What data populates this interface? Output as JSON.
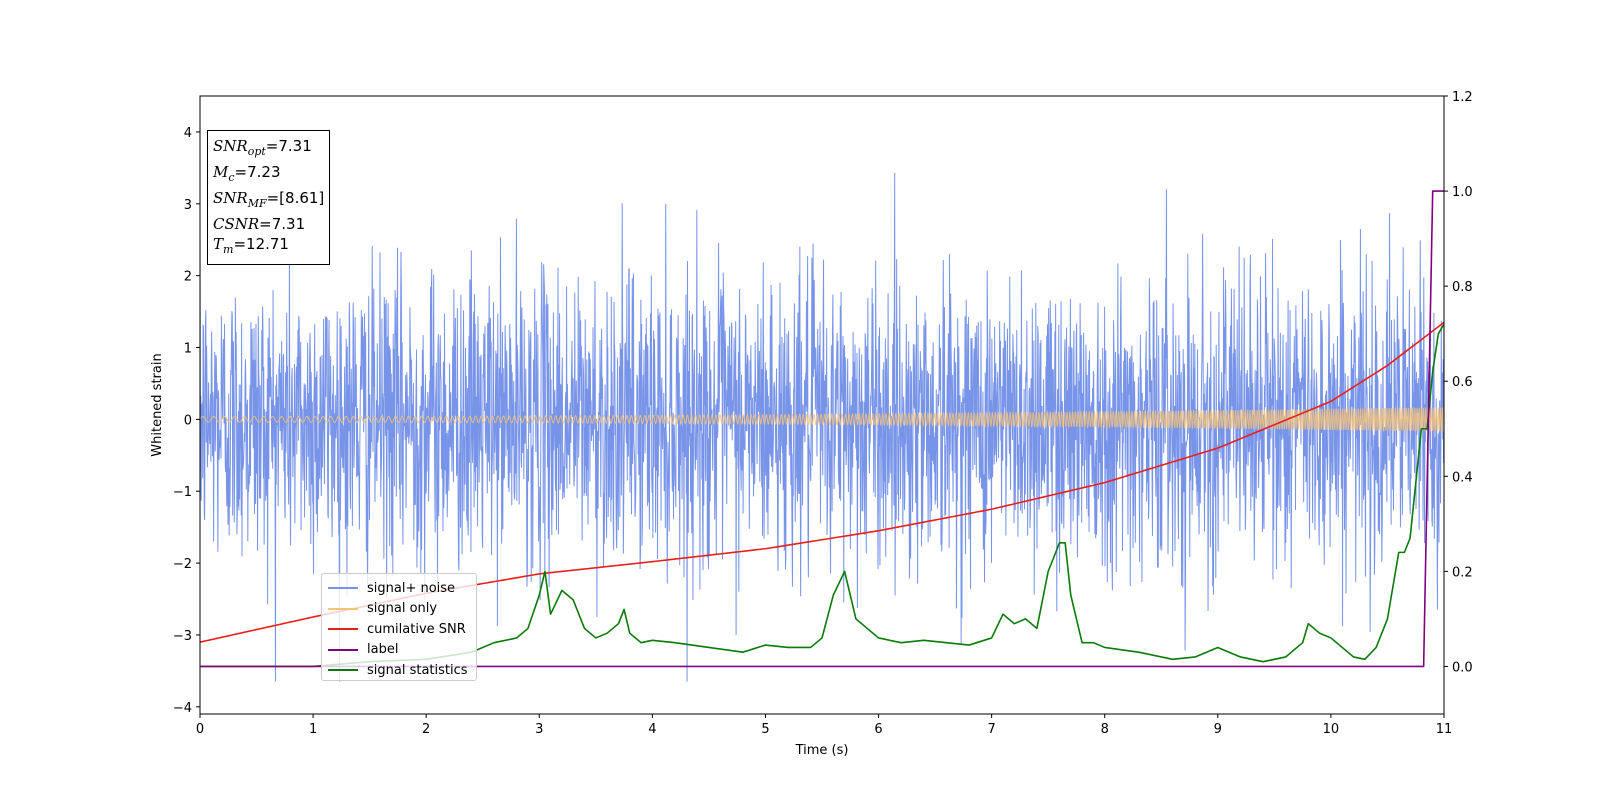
{
  "chart_data": {
    "type": "line",
    "title": "",
    "xlabel": "Time (s)",
    "ylabel": "Whitened strain",
    "y2label": "",
    "xlim": [
      0,
      11
    ],
    "ylim": [
      -4.1,
      4.5
    ],
    "y2lim": [
      -0.1,
      1.2
    ],
    "xticks": [
      "0",
      "1",
      "2",
      "3",
      "4",
      "5",
      "6",
      "7",
      "8",
      "9",
      "10",
      "11"
    ],
    "yticks": [
      "−4",
      "−3",
      "−2",
      "−1",
      "0",
      "1",
      "2",
      "3",
      "4"
    ],
    "y2ticks": [
      "0.0",
      "0.2",
      "0.4",
      "0.6",
      "0.8",
      "1.0",
      "1.2"
    ],
    "legend_position": "lower-left",
    "annotation": {
      "snr_opt_label": "SNR",
      "snr_opt_sub": "opt",
      "snr_opt_value": "=7.31",
      "mc_label": "M",
      "mc_sub": "c",
      "mc_value": "=7.23",
      "snr_mf_label": "SNR",
      "snr_mf_sub": "MF",
      "snr_mf_value": "=[8.61]",
      "csnr_label": "CSNR",
      "csnr_value": "=7.31",
      "tm_label": "T",
      "tm_sub": "m",
      "tm_value": "=12.71"
    },
    "series": [
      {
        "name": "signal+ noise",
        "color": "#7894e8",
        "axis": "left",
        "kind": "noise",
        "amplitude_std": 1.0
      },
      {
        "name": "signal only",
        "color": "#f5c27a",
        "axis": "left",
        "kind": "chirp",
        "amplitude_start": 0.04,
        "amplitude_end": 0.17
      },
      {
        "name": "cumilative SNR",
        "color": "#e8201c",
        "axis": "left",
        "x": [
          0,
          1,
          2,
          3,
          4,
          5,
          6,
          7,
          8,
          9,
          10,
          10.5,
          11
        ],
        "y": [
          -3.1,
          -2.75,
          -2.42,
          -2.15,
          -1.98,
          -1.8,
          -1.55,
          -1.25,
          -0.88,
          -0.4,
          0.25,
          0.75,
          1.35
        ]
      },
      {
        "name": "label",
        "color": "#800080",
        "axis": "right",
        "x": [
          0,
          10.82,
          10.9,
          11
        ],
        "y": [
          0.0,
          0.0,
          1.0,
          1.0
        ]
      },
      {
        "name": "signal statistics",
        "color": "#0a7a0a",
        "axis": "right",
        "x": [
          0,
          1,
          1.5,
          2.0,
          2.4,
          2.6,
          2.8,
          2.9,
          3.0,
          3.05,
          3.1,
          3.2,
          3.3,
          3.4,
          3.5,
          3.6,
          3.7,
          3.75,
          3.8,
          3.9,
          4.0,
          4.2,
          4.5,
          4.8,
          5.0,
          5.2,
          5.4,
          5.5,
          5.6,
          5.7,
          5.8,
          5.9,
          6.0,
          6.2,
          6.4,
          6.6,
          6.8,
          7.0,
          7.1,
          7.2,
          7.3,
          7.4,
          7.5,
          7.6,
          7.65,
          7.7,
          7.8,
          7.9,
          8.0,
          8.3,
          8.6,
          8.8,
          9.0,
          9.2,
          9.4,
          9.6,
          9.75,
          9.8,
          9.9,
          10.0,
          10.2,
          10.3,
          10.4,
          10.5,
          10.6,
          10.65,
          10.7,
          10.8,
          10.85,
          10.9,
          10.95,
          11.0
        ],
        "y": [
          0.0,
          0.0,
          0.01,
          0.015,
          0.03,
          0.05,
          0.06,
          0.08,
          0.15,
          0.2,
          0.11,
          0.16,
          0.14,
          0.08,
          0.06,
          0.07,
          0.09,
          0.12,
          0.07,
          0.05,
          0.055,
          0.05,
          0.04,
          0.03,
          0.045,
          0.04,
          0.04,
          0.06,
          0.15,
          0.2,
          0.1,
          0.08,
          0.06,
          0.05,
          0.055,
          0.05,
          0.045,
          0.06,
          0.11,
          0.09,
          0.1,
          0.08,
          0.2,
          0.26,
          0.26,
          0.15,
          0.05,
          0.05,
          0.04,
          0.03,
          0.015,
          0.02,
          0.04,
          0.02,
          0.01,
          0.02,
          0.05,
          0.09,
          0.07,
          0.06,
          0.02,
          0.015,
          0.04,
          0.1,
          0.24,
          0.24,
          0.27,
          0.5,
          0.5,
          0.62,
          0.7,
          0.72
        ]
      }
    ]
  }
}
